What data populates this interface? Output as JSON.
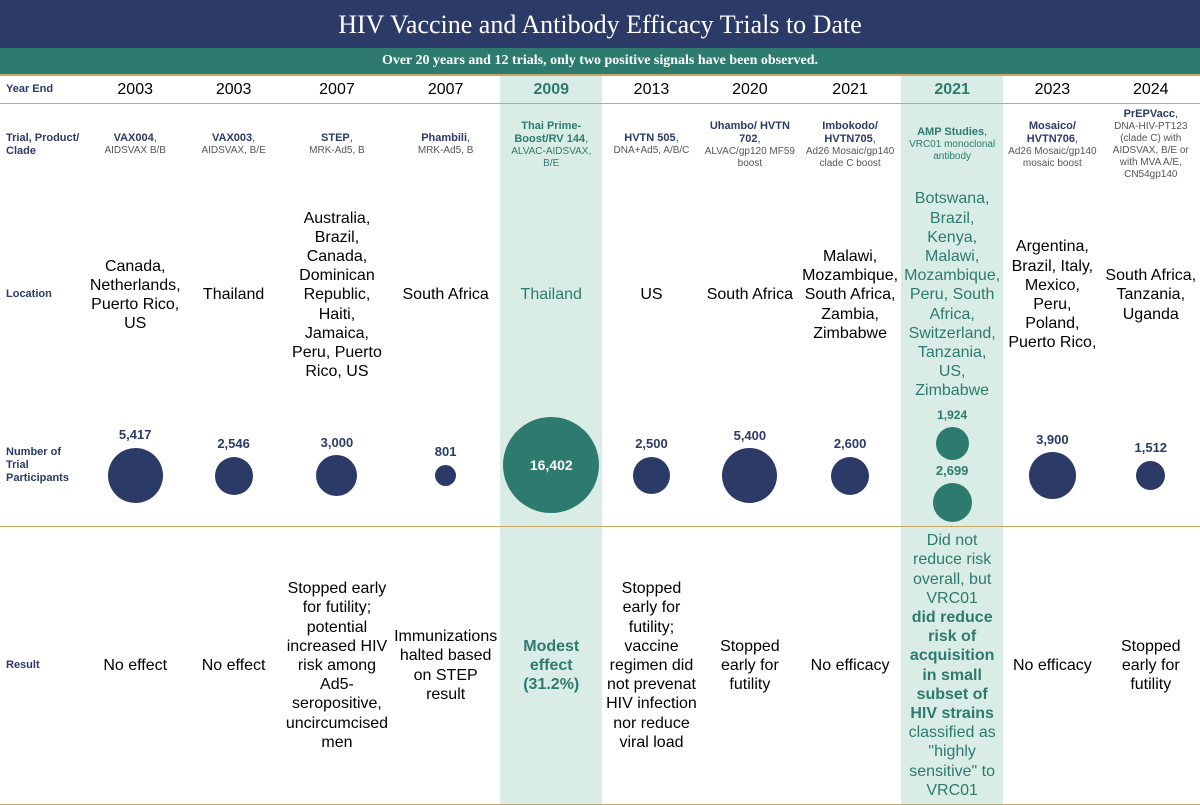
{
  "title": "HIV Vaccine and Antibody Efficacy Trials to Date",
  "subtitle": "Over 20 years and 12 trials, only two positive signals have been observed.",
  "labels": {
    "year": "Year End",
    "trial": "Trial, Product/ Clade",
    "location": "Location",
    "participants": "Number of Trial Participants",
    "result": "Result"
  },
  "colors": {
    "header_bg": "#2b3a67",
    "subheader_bg": "#2d7a6e",
    "highlight_bg": "#d9ede6",
    "bubble_default": "#2b3a67",
    "bubble_positive": "#2d7a6e",
    "rule": "#c9a961"
  },
  "bubble_scale": 0.75,
  "trials": [
    {
      "year": "2003",
      "name": "VAX004",
      "clade": "AIDSVAX B/B",
      "location": "Canada, Netherlands, Puerto Rico, US",
      "participants": 5417,
      "p_label": "5,417",
      "result": "No effect",
      "positive": false
    },
    {
      "year": "2003",
      "name": "VAX003",
      "clade": "AIDSVAX, B/E",
      "location": "Thailand",
      "participants": 2546,
      "p_label": "2,546",
      "result": "No effect",
      "positive": false
    },
    {
      "year": "2007",
      "name": "STEP",
      "clade": "MRK-Ad5, B",
      "location": "Australia, Brazil, Canada, Dominican Republic, Haiti, Jamaica, Peru, Puerto Rico, US",
      "participants": 3000,
      "p_label": "3,000",
      "result": "Stopped early for futility; potential increased HIV risk among Ad5-seropositive, uncircumcised men",
      "positive": false
    },
    {
      "year": "2007",
      "name": "Phambili",
      "clade": "MRK-Ad5, B",
      "location": "South Africa",
      "participants": 801,
      "p_label": "801",
      "result": "Immunizations halted based on STEP result",
      "positive": false
    },
    {
      "year": "2009",
      "name": "Thai Prime-Boost/RV 144",
      "clade": "ALVAC-AIDSVAX, B/E",
      "location": "Thailand",
      "participants": 16402,
      "p_label": "16,402",
      "result": "Modest effect (31.2%)",
      "positive": true,
      "result_bold": true
    },
    {
      "year": "2013",
      "name": "HVTN 505",
      "clade": "DNA+Ad5, A/B/C",
      "location": "US",
      "participants": 2500,
      "p_label": "2,500",
      "result": "Stopped early for futility; vaccine regimen did not prevenat HIV infection nor reduce viral load",
      "positive": false
    },
    {
      "year": "2020",
      "name": "Uhambo/ HVTN 702",
      "clade": "ALVAC/gp120 MF59 boost",
      "location": "South Africa",
      "participants": 5400,
      "p_label": "5,400",
      "result": "Stopped early for futility",
      "positive": false
    },
    {
      "year": "2021",
      "name": "Imbokodo/ HVTN705",
      "clade": "Ad26 Mosaic/gp140 clade C boost",
      "location": "Malawi, Mozambique, South Africa, Zambia, Zimbabwe",
      "participants": 2600,
      "p_label": "2,600",
      "result": "No efficacy",
      "positive": false
    },
    {
      "year": "2021",
      "name": "AMP Studies",
      "clade": "VRC01 monoclonal antibody",
      "location": "Botswana, Brazil, Kenya, Malawi, Mozambique, Peru, South Africa, Switzerland, Tanzania, US, Zimbabwe",
      "participants": 2699,
      "p_label": "2,699",
      "secondary": 1924,
      "s_label": "1,924",
      "result_html": "Did not reduce risk overall, but VRC01 <b>did reduce risk of acquisition in small subset of HIV strains</b> classified as \"highly sensitive\" to VRC01",
      "positive": true
    },
    {
      "year": "2023",
      "name": "Mosaico/ HVTN706",
      "clade": "Ad26 Mosaic/gp140 mosaic boost",
      "location": "Argentina, Brazil, Italy, Mexico, Peru, Poland, Puerto Rico,",
      "participants": 3900,
      "p_label": "3,900",
      "result": "No efficacy",
      "positive": false
    },
    {
      "year": "2024",
      "name": "PrEPVacc",
      "clade": "DNA-HIV-PT123 (clade C) with AIDSVAX, B/E or with MVA A/E, CN54gp140",
      "location": "South Africa, Tanzania, Uganda",
      "participants": 1512,
      "p_label": "1,512",
      "result": "Stopped early for futility",
      "positive": false
    }
  ]
}
